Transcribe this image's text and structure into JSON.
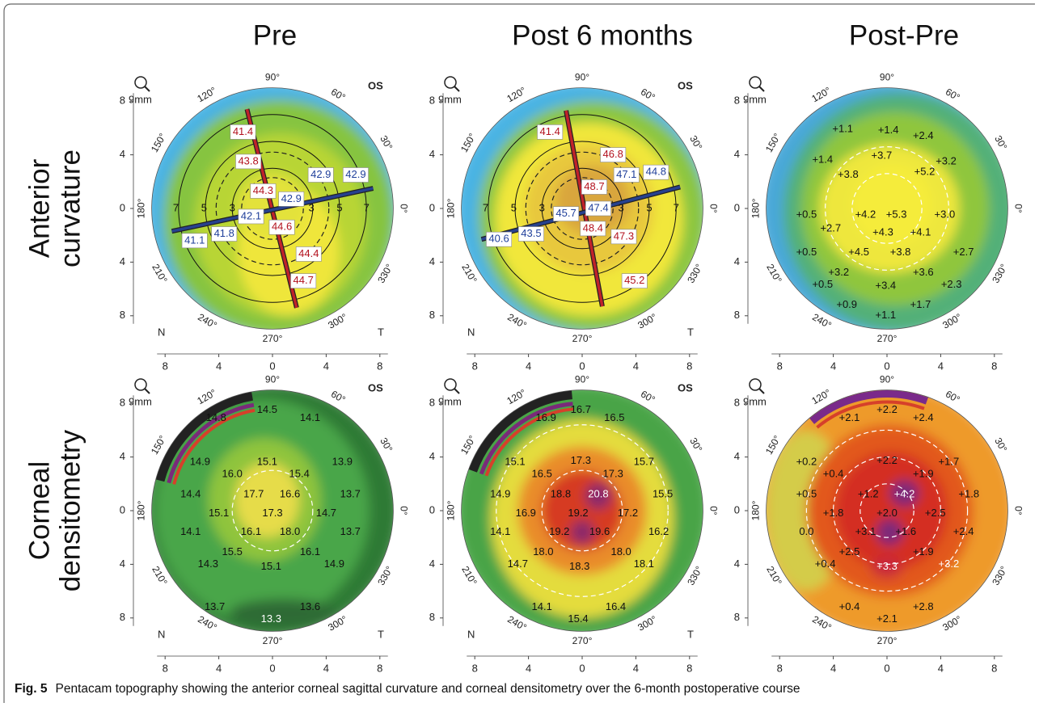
{
  "column_headers": [
    "Pre",
    "Post 6 months",
    "Post-Pre"
  ],
  "row_headers": [
    [
      "Anterior",
      "curvature"
    ],
    [
      "Corneal",
      "densitometry"
    ]
  ],
  "axes": {
    "xticks": [
      {
        "value": -8,
        "label": "8"
      },
      {
        "value": -4,
        "label": "4"
      },
      0,
      4,
      8
    ],
    "yticks": [
      8,
      4,
      0,
      {
        "value": -4,
        "label": "4"
      },
      {
        "value": -8,
        "label": "8"
      }
    ],
    "angles": [
      {
        "value": 90,
        "label": "90°"
      },
      {
        "value": 120,
        "label": "120°"
      },
      {
        "value": 60,
        "label": "60°"
      },
      {
        "value": 150,
        "label": "150°"
      },
      {
        "value": 30,
        "label": "30°"
      },
      {
        "value": 180,
        "label": "180°"
      },
      {
        "value": 0,
        "label": "0°"
      },
      {
        "value": 210,
        "label": "210°"
      },
      {
        "value": 330,
        "label": "330°"
      },
      {
        "value": 240,
        "label": "240°"
      },
      {
        "value": 300,
        "label": "300°"
      },
      {
        "value": 270,
        "label": "270°"
      }
    ]
  },
  "panels": [
    {
      "kind": "curvature",
      "zoom": "9mm",
      "eye": "OS",
      "nasal": "N",
      "temporal": "T",
      "boxed": true,
      "label_color": "#b3121e",
      "rings": [
        "7",
        "5",
        "3",
        "3",
        "5",
        "7"
      ],
      "labels": [
        {
          "text": "41.4"
        },
        {
          "text": "43.8"
        },
        {
          "text": "44.3"
        },
        {
          "text": "42.9",
          "color": "#1f3f9a"
        },
        {
          "text": "42.9",
          "color": "#1f3f9a"
        },
        {
          "text": "42.9",
          "color": "#1f3f9a"
        },
        {
          "text": "42.1",
          "color": "#1f3f9a"
        },
        {
          "text": "41.8",
          "color": "#1f3f9a"
        },
        {
          "text": "41.1",
          "color": "#1f3f9a"
        },
        {
          "text": "44.6"
        },
        {
          "text": "44.4"
        },
        {
          "text": "44.7"
        }
      ]
    },
    {
      "kind": "curvature",
      "zoom": "9mm",
      "eye": "OS",
      "nasal": "N",
      "temporal": "T",
      "boxed": true,
      "label_color": "#b3121e",
      "rings": [
        "7",
        "5",
        "3",
        "3",
        "5",
        "7"
      ],
      "labels": [
        {
          "text": "41.4"
        },
        {
          "text": "46.8"
        },
        {
          "text": "48.7"
        },
        {
          "text": "47.1",
          "color": "#1f3f9a"
        },
        {
          "text": "44.8",
          "color": "#1f3f9a"
        },
        {
          "text": "45.7",
          "color": "#1f3f9a"
        },
        {
          "text": "47.4",
          "color": "#1f3f9a"
        },
        {
          "text": "43.5",
          "color": "#1f3f9a"
        },
        {
          "text": "40.6",
          "color": "#1f3f9a"
        },
        {
          "text": "48.4"
        },
        {
          "text": "47.3"
        },
        {
          "text": "45.2"
        }
      ]
    },
    {
      "kind": "difference",
      "zoom": "9mm",
      "boxed": false,
      "label_color": "#111111",
      "labels": [
        {
          "text": "+1.1"
        },
        {
          "text": "+1.4"
        },
        {
          "text": "+2.4"
        },
        {
          "text": "+1.4"
        },
        {
          "text": "+3.7"
        },
        {
          "text": "+3.2"
        },
        {
          "text": "+3.8"
        },
        {
          "text": "+5.2"
        },
        {
          "text": "+0.5"
        },
        {
          "text": "+4.2"
        },
        {
          "text": "+5.3"
        },
        {
          "text": "+3.0"
        },
        {
          "text": "+2.7"
        },
        {
          "text": "+4.3"
        },
        {
          "text": "+4.1"
        },
        {
          "text": "+0.5"
        },
        {
          "text": "+4.5"
        },
        {
          "text": "+3.8"
        },
        {
          "text": "+2.7"
        },
        {
          "text": "+3.2"
        },
        {
          "text": "+3.6"
        },
        {
          "text": "+0.5"
        },
        {
          "text": "+3.4"
        },
        {
          "text": "+2.3"
        },
        {
          "text": "+0.9"
        },
        {
          "text": "+1.7"
        },
        {
          "text": "+1.1"
        }
      ]
    },
    {
      "kind": "densitometry",
      "zoom": "9mm",
      "eye": "OS",
      "nasal": "N",
      "temporal": "T",
      "boxed": false,
      "label_color": "#111111",
      "labels": [
        {
          "text": "14.5"
        },
        {
          "text": "14.8"
        },
        {
          "text": "14.1"
        },
        {
          "text": "14.9"
        },
        {
          "text": "15.1"
        },
        {
          "text": "13.9"
        },
        {
          "text": "16.0"
        },
        {
          "text": "15.4"
        },
        {
          "text": "14.4"
        },
        {
          "text": "17.7"
        },
        {
          "text": "16.6"
        },
        {
          "text": "13.7"
        },
        {
          "text": "15.1"
        },
        {
          "text": "17.3"
        },
        {
          "text": "14.7"
        },
        {
          "text": "14.1"
        },
        {
          "text": "16.1"
        },
        {
          "text": "18.0"
        },
        {
          "text": "13.7"
        },
        {
          "text": "15.5"
        },
        {
          "text": "16.1"
        },
        {
          "text": "14.3"
        },
        {
          "text": "15.1"
        },
        {
          "text": "14.9"
        },
        {
          "text": "13.7"
        },
        {
          "text": "13.6"
        },
        {
          "text": "13.3",
          "color": "#ffffff"
        }
      ]
    },
    {
      "kind": "densitometry",
      "zoom": "9mm",
      "eye": "OS",
      "nasal": "N",
      "temporal": "T",
      "boxed": false,
      "label_color": "#111111",
      "labels": [
        {
          "text": "16.7"
        },
        {
          "text": "16.9"
        },
        {
          "text": "16.5"
        },
        {
          "text": "15.1"
        },
        {
          "text": "17.3"
        },
        {
          "text": "15.7"
        },
        {
          "text": "16.5"
        },
        {
          "text": "17.3"
        },
        {
          "text": "14.9"
        },
        {
          "text": "18.8"
        },
        {
          "text": "20.8",
          "color": "#ffffff"
        },
        {
          "text": "15.5"
        },
        {
          "text": "16.9"
        },
        {
          "text": "19.2"
        },
        {
          "text": "17.2"
        },
        {
          "text": "14.1"
        },
        {
          "text": "19.2"
        },
        {
          "text": "19.6"
        },
        {
          "text": "16.2"
        },
        {
          "text": "18.0"
        },
        {
          "text": "18.0"
        },
        {
          "text": "14.7"
        },
        {
          "text": "18.3"
        },
        {
          "text": "18.1"
        },
        {
          "text": "14.1"
        },
        {
          "text": "16.4"
        },
        {
          "text": "15.4"
        }
      ]
    },
    {
      "kind": "density-difference",
      "zoom": "9mm",
      "boxed": false,
      "label_color": "#111111",
      "labels": [
        {
          "text": "+2.2"
        },
        {
          "text": "+2.1"
        },
        {
          "text": "+2.4"
        },
        {
          "text": "+0.2"
        },
        {
          "text": "+2.2"
        },
        {
          "text": "+1.7"
        },
        {
          "text": "+0.4"
        },
        {
          "text": "+1.9"
        },
        {
          "text": "+0.5"
        },
        {
          "text": "+1.2"
        },
        {
          "text": "+4.2",
          "color": "#ffffff"
        },
        {
          "text": "+1.8"
        },
        {
          "text": "+1.8"
        },
        {
          "text": "+2.0"
        },
        {
          "text": "+2.5"
        },
        {
          "text": "0.0"
        },
        {
          "text": "+3.1"
        },
        {
          "text": "+1.6"
        },
        {
          "text": "+2.4"
        },
        {
          "text": "+2.5"
        },
        {
          "text": "+1.9"
        },
        {
          "text": "+0.4"
        },
        {
          "text": "+3.3",
          "color": "#ffffff"
        },
        {
          "text": "+3.2",
          "color": "#ffffff"
        },
        {
          "text": "+0.4"
        },
        {
          "text": "+2.8"
        },
        {
          "text": "+2.1"
        }
      ]
    }
  ],
  "caption": {
    "label": "Fig. 5",
    "text": "Pentacam topography showing the anterior corneal sagittal curvature and corneal densitometry over the 6-month postoperative course"
  }
}
